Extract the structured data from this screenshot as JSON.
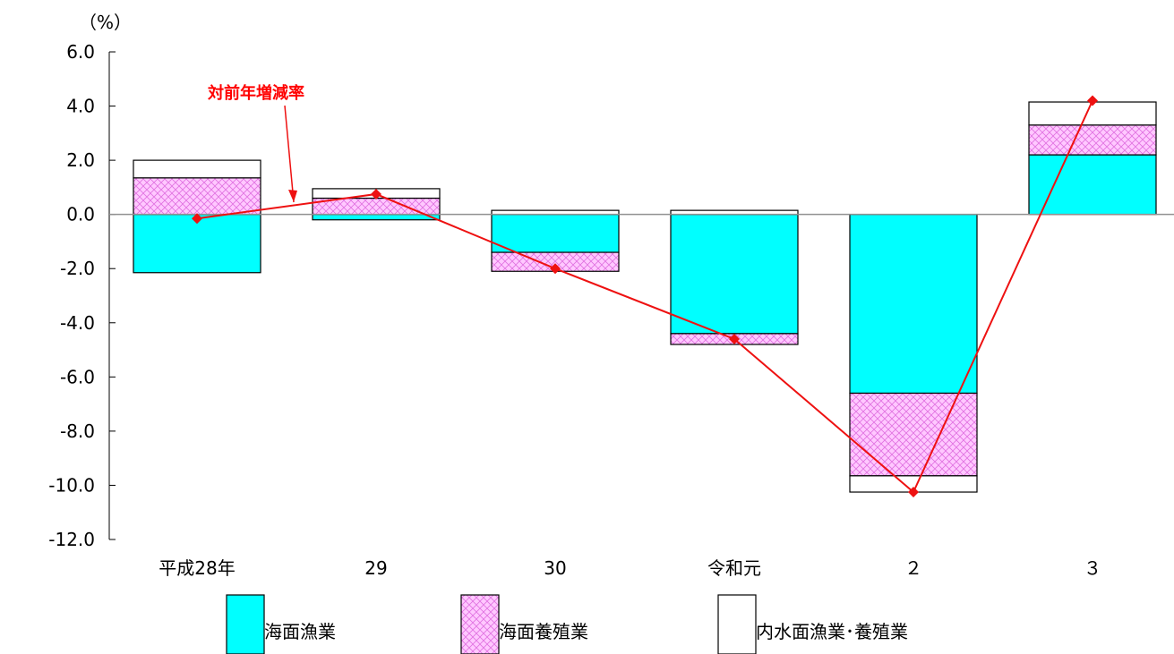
{
  "chart_data": {
    "type": "bar",
    "stacked": true,
    "ylabel": "（%）",
    "ylim": [
      -12.0,
      6.0
    ],
    "yticks": [
      "6.0",
      "4.0",
      "2.0",
      "0.0",
      "-2.0",
      "-4.0",
      "-6.0",
      "-8.0",
      "-10.0",
      "-12.0"
    ],
    "ytick_values": [
      6,
      4,
      2,
      0,
      -2,
      -4,
      -6,
      -8,
      -10,
      -12
    ],
    "categories": [
      "平成28年",
      "29",
      "30",
      "令和元",
      "２",
      "３"
    ],
    "series": [
      {
        "name": "海面漁業",
        "values": [
          -2.15,
          -0.2,
          -1.4,
          -4.4,
          -6.6,
          2.2
        ]
      },
      {
        "name": "海面養殖業",
        "values": [
          1.35,
          0.6,
          -0.7,
          -0.4,
          -3.05,
          1.1
        ]
      },
      {
        "name": "内水面漁業･養殖業",
        "values": [
          0.65,
          0.35,
          0.15,
          0.15,
          -0.6,
          0.85
        ]
      }
    ],
    "line": {
      "name": "対前年増減率",
      "values": [
        -0.15,
        0.75,
        -2.0,
        -4.6,
        -10.25,
        4.2
      ]
    },
    "annotation": "対前年増減率",
    "colors": {
      "海面漁業": "#00ffff",
      "海面養殖業": "#ffc0ff",
      "内水面漁業･養殖業": "#ffffff",
      "line": "#ee1111"
    },
    "legend_position": "bottom",
    "grid": false
  }
}
